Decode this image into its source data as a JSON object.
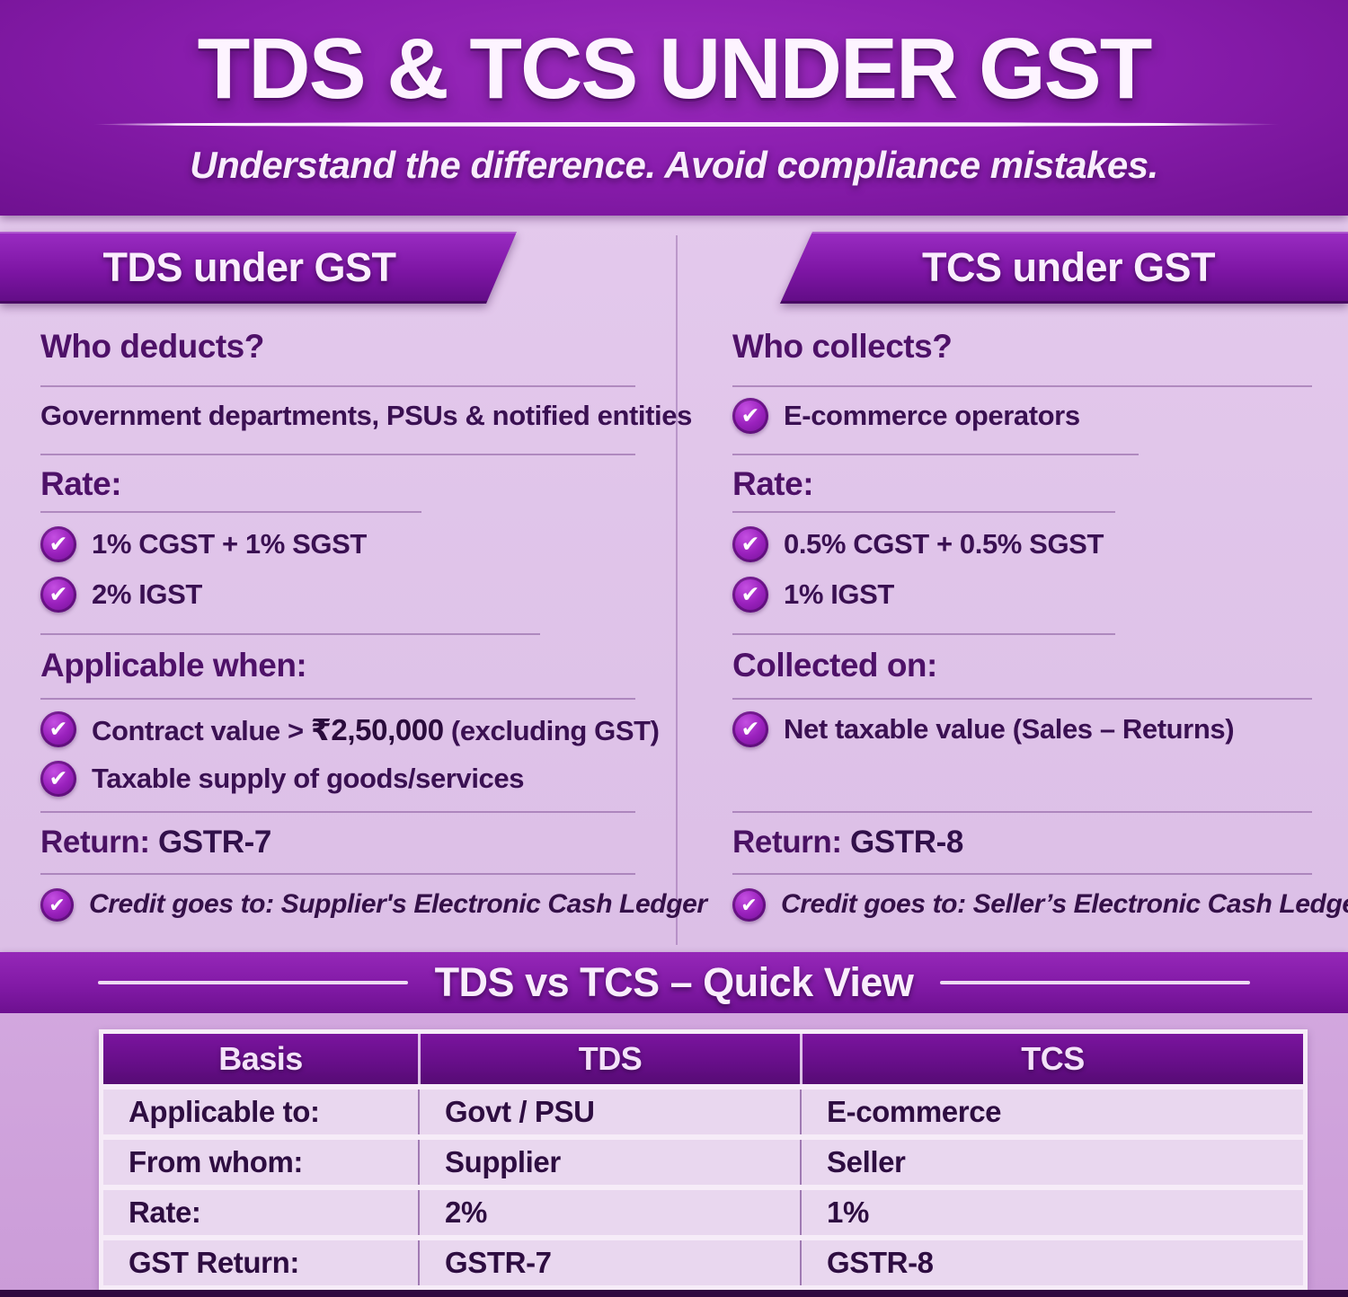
{
  "header": {
    "title": "TDS & TCS UNDER GST",
    "subtitle": "Understand the difference. Avoid compliance mistakes."
  },
  "icons": {
    "check": "✔"
  },
  "colors": {
    "header_purple": "#8a1dae",
    "ribbon_purple": "#7d15a4",
    "card_background": "#dec2e8",
    "bottom_background": "#cb9cd8",
    "heading_text": "#4e1168",
    "body_text": "#3a1052",
    "check_badge": "#9a21bd",
    "table_header": "#660e88",
    "table_row": "#e9d7ef"
  },
  "tds": {
    "banner": "TDS under GST",
    "who": {
      "heading": "Who deducts?",
      "text": "Government departments, PSUs & notified entities"
    },
    "rate": {
      "heading": "Rate:",
      "items": [
        "1% CGST + 1% SGST",
        "2% IGST"
      ]
    },
    "when": {
      "heading": "Applicable when:",
      "item1": {
        "pre": "Contract value > ",
        "bold": "₹2,50,000",
        "post": " (excluding GST)"
      },
      "item2": "Taxable supply of goods/services"
    },
    "return": {
      "label": "Return:",
      "value": "GSTR-7"
    },
    "credit": {
      "label": "Credit goes to:",
      "value": "Supplier's Electronic Cash Ledger"
    }
  },
  "tcs": {
    "banner": "TCS under GST",
    "who": {
      "heading": "Who collects?",
      "item": "E-commerce operators"
    },
    "rate": {
      "heading": "Rate:",
      "items": [
        "0.5% CGST + 0.5% SGST",
        "1% IGST"
      ]
    },
    "collected": {
      "heading": "Collected on:",
      "item": "Net taxable value (Sales – Returns)"
    },
    "return": {
      "label": "Return:",
      "value": "GSTR-8"
    },
    "credit": {
      "label": "Credit goes to:",
      "value": "Seller’s Electronic Cash Ledger"
    }
  },
  "quick_view": {
    "title": "TDS vs TCS – Quick View",
    "table": {
      "headers": [
        "Basis",
        "TDS",
        "TCS"
      ],
      "rows": [
        [
          "Applicable to:",
          "Govt / PSU",
          "E-commerce"
        ],
        [
          "From whom:",
          "Supplier",
          "Seller"
        ],
        [
          "Rate:",
          "2%",
          "1%"
        ],
        [
          "GST Return:",
          "GSTR-7",
          "GSTR-8"
        ]
      ]
    }
  }
}
